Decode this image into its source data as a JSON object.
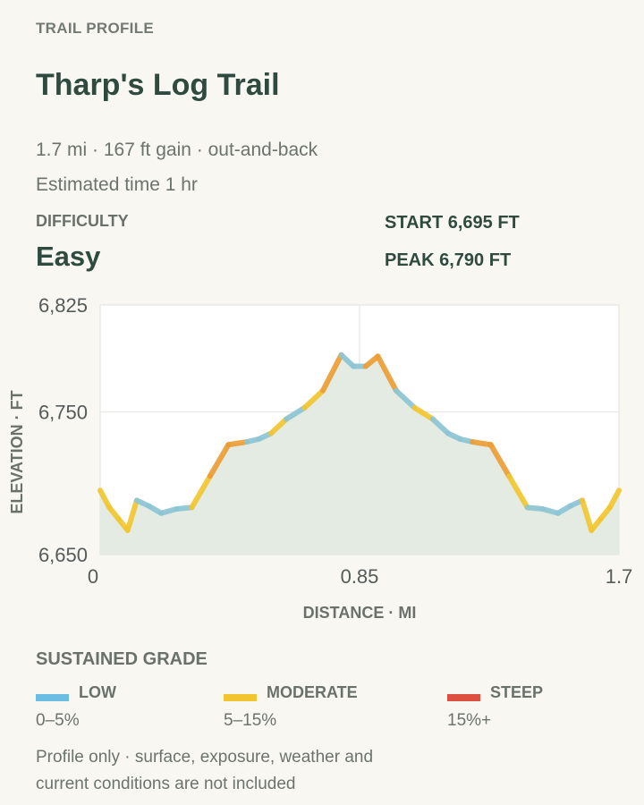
{
  "header": {
    "kicker": "TRAIL PROFILE",
    "title": "Tharp's Log Trail",
    "summary": "1.7 mi · 167 ft gain · out-and-back",
    "time": "Estimated time 1 hr"
  },
  "difficulty": {
    "label": "DIFFICULTY",
    "value": "Easy"
  },
  "stats": {
    "start": "START 6,695 FT",
    "peak": "PEAK 6,790 FT"
  },
  "chart_data": {
    "type": "line",
    "xlabel": "DISTANCE · MI",
    "ylabel": "ELEVATION · FT",
    "xlim": [
      0,
      1.7
    ],
    "ylim": [
      6650,
      6825
    ],
    "x_ticks": [
      0,
      0.85,
      1.7
    ],
    "x_tick_labels": [
      "0",
      "0.85",
      "1.7"
    ],
    "y_ticks": [
      6650,
      6750,
      6825
    ],
    "y_tick_labels": [
      "6,650",
      "6,750",
      "6,825"
    ],
    "grid": true,
    "area_fill": true,
    "points": [
      {
        "x": 0.0,
        "y": 6695
      },
      {
        "x": 0.03,
        "y": 6683
      },
      {
        "x": 0.06,
        "y": 6675
      },
      {
        "x": 0.09,
        "y": 6667
      },
      {
        "x": 0.12,
        "y": 6688
      },
      {
        "x": 0.16,
        "y": 6684
      },
      {
        "x": 0.2,
        "y": 6679
      },
      {
        "x": 0.25,
        "y": 6682
      },
      {
        "x": 0.3,
        "y": 6683
      },
      {
        "x": 0.36,
        "y": 6705
      },
      {
        "x": 0.42,
        "y": 6727
      },
      {
        "x": 0.48,
        "y": 6729
      },
      {
        "x": 0.52,
        "y": 6731
      },
      {
        "x": 0.56,
        "y": 6735
      },
      {
        "x": 0.61,
        "y": 6745
      },
      {
        "x": 0.67,
        "y": 6753
      },
      {
        "x": 0.73,
        "y": 6765
      },
      {
        "x": 0.79,
        "y": 6790
      },
      {
        "x": 0.83,
        "y": 6782
      },
      {
        "x": 0.87,
        "y": 6782
      },
      {
        "x": 0.91,
        "y": 6789
      },
      {
        "x": 0.97,
        "y": 6765
      },
      {
        "x": 1.03,
        "y": 6753
      },
      {
        "x": 1.09,
        "y": 6745
      },
      {
        "x": 1.14,
        "y": 6735
      },
      {
        "x": 1.18,
        "y": 6731
      },
      {
        "x": 1.22,
        "y": 6729
      },
      {
        "x": 1.28,
        "y": 6727
      },
      {
        "x": 1.34,
        "y": 6705
      },
      {
        "x": 1.4,
        "y": 6683
      },
      {
        "x": 1.45,
        "y": 6682
      },
      {
        "x": 1.5,
        "y": 6679
      },
      {
        "x": 1.54,
        "y": 6684
      },
      {
        "x": 1.58,
        "y": 6688
      },
      {
        "x": 1.61,
        "y": 6667
      },
      {
        "x": 1.64,
        "y": 6675
      },
      {
        "x": 1.67,
        "y": 6683
      },
      {
        "x": 1.7,
        "y": 6695
      }
    ],
    "segment_grades": [
      "moderate",
      "moderate",
      "moderate",
      "moderate",
      "low",
      "low",
      "low",
      "low",
      "moderate",
      "high",
      "high",
      "low",
      "low",
      "moderate",
      "low",
      "moderate",
      "high",
      "low",
      "low",
      "high",
      "high",
      "low",
      "moderate",
      "low",
      "low",
      "low",
      "high",
      "high",
      "moderate",
      "low",
      "low",
      "low",
      "low",
      "moderate",
      "moderate",
      "moderate",
      "moderate"
    ]
  },
  "legend": {
    "title": "SUSTAINED GRADE",
    "items": [
      {
        "name": "LOW",
        "range": "0–5%",
        "color": "#6cbde3"
      },
      {
        "name": "MODERATE",
        "range": "5–15%",
        "color": "#f2c530"
      },
      {
        "name": "STEEP",
        "range": "15%+",
        "color": "#dd4f3f"
      }
    ]
  },
  "colors": {
    "low": "#8cc4d4",
    "moderate": "#f2c530",
    "high": "#eb9d35",
    "area": "#e4ebe2",
    "plot_bg": "#ffffff",
    "grid": "#e6e6e2"
  },
  "note": "Profile only · surface, exposure, weather and current conditions are not included"
}
